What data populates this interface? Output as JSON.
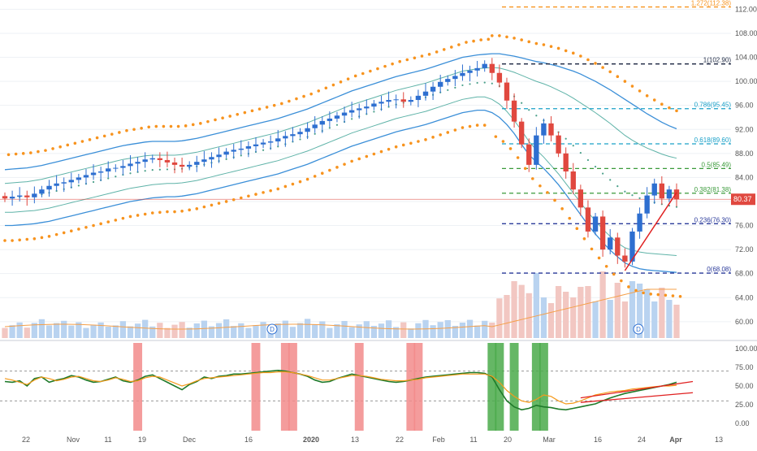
{
  "colors": {
    "background": "#ffffff",
    "grid": "#eef1f5",
    "axis_text": "#555555",
    "bull": "#2e6fd0",
    "bear": "#e0483f",
    "psar": "#f7931e",
    "envelope_outer": "#3b8fd8",
    "envelope_inner": "#5fb3a8",
    "fib": "#9a8a2a",
    "volume_up": "#b9d3f0",
    "volume_down": "#f2c7c2",
    "volume_ma": "#f5a04a",
    "osc_green": "#1f7a2a",
    "osc_orange": "#f59a1b",
    "osc_highlight_red": "#f28b8b",
    "osc_highlight_green": "#4aaa4a",
    "trendline": "#e02020",
    "price_tag_bg": "#e0483f",
    "price_tag_text": "#ffffff",
    "earnings_marker": "#2e6fd0"
  },
  "chart_data": [
    {
      "type": "candlestick",
      "panel": "price",
      "y_axis_position": "right",
      "ylim": [
        57,
        113
      ],
      "y_ticks": [
        "60.00",
        "64.00",
        "68.00",
        "72.00",
        "76.00",
        "80.00",
        "84.00",
        "88.00",
        "92.00",
        "96.00",
        "100.00",
        "104.00",
        "108.00",
        "112.00"
      ],
      "x_ticks": [
        "22",
        "Nov",
        "11",
        "19",
        "Dec",
        "16",
        "2020",
        "13",
        "22",
        "Feb",
        "11",
        "20",
        "Mar",
        "16",
        "24",
        "Apr",
        "13"
      ],
      "last_price_label": "80.37",
      "last_price": 80.37,
      "fib_levels": [
        {
          "label": "1.272(112.38)",
          "value": 112.38,
          "color": "#f7931e"
        },
        {
          "label": "1(102.90)",
          "value": 102.9,
          "color": "#1a2540"
        },
        {
          "label": "0.786(95.45)",
          "value": 95.45,
          "color": "#1aa0c8"
        },
        {
          "label": "0.618(89.60)",
          "value": 89.6,
          "color": "#1aa0c8"
        },
        {
          "label": "0.5(85.49)",
          "value": 85.49,
          "color": "#3a9a3a"
        },
        {
          "label": "0.382(81.38)",
          "value": 81.38,
          "color": "#3a9a3a"
        },
        {
          "label": "0.236(76.30)",
          "value": 76.3,
          "color": "#2a3a9a"
        },
        {
          "label": "0(68.08)",
          "value": 68.08,
          "color": "#2a3a9a"
        }
      ],
      "close_series": [
        80.5,
        80.8,
        81.0,
        80.7,
        81.3,
        82.0,
        82.6,
        83.0,
        83.2,
        83.6,
        84.0,
        84.4,
        84.8,
        85.0,
        85.5,
        85.6,
        85.9,
        86.3,
        86.6,
        87.0,
        87.2,
        86.9,
        86.5,
        86.1,
        85.8,
        86.1,
        86.6,
        87.0,
        87.4,
        87.8,
        88.3,
        88.6,
        88.8,
        89.2,
        89.5,
        89.8,
        90.0,
        90.5,
        90.9,
        91.2,
        91.6,
        92.2,
        92.8,
        93.4,
        93.8,
        94.3,
        94.8,
        95.2,
        95.5,
        95.8,
        96.3,
        96.6,
        96.9,
        97.0,
        96.6,
        96.9,
        97.6,
        98.3,
        99.1,
        99.9,
        100.4,
        100.9,
        101.4,
        101.8,
        102.2,
        102.9,
        101.4,
        99.8,
        96.8,
        93.3,
        89.5,
        86.1,
        91.0,
        93.0,
        91.0,
        88.0,
        85.0,
        82.0,
        79.0,
        75.0,
        77.5,
        72.0,
        74.0,
        71.0,
        70.0,
        75.0,
        78.0,
        81.0,
        83.0,
        80.5,
        82.0,
        80.37
      ],
      "open_series": [
        80.9,
        80.5,
        80.8,
        81.0,
        80.7,
        81.3,
        82.0,
        82.6,
        83.0,
        83.2,
        83.6,
        84.0,
        84.4,
        84.8,
        85.0,
        85.5,
        85.6,
        85.9,
        86.3,
        86.6,
        87.0,
        87.2,
        86.9,
        86.5,
        86.1,
        85.8,
        86.1,
        86.6,
        87.0,
        87.4,
        87.8,
        88.3,
        88.6,
        88.8,
        89.2,
        89.5,
        89.8,
        90.0,
        90.5,
        90.9,
        91.2,
        91.6,
        92.2,
        92.8,
        93.4,
        93.8,
        94.3,
        94.8,
        95.2,
        95.5,
        95.8,
        96.3,
        96.6,
        96.9,
        97.0,
        96.6,
        96.9,
        97.6,
        98.3,
        99.1,
        99.9,
        100.4,
        100.9,
        101.4,
        101.8,
        102.2,
        102.9,
        101.4,
        99.8,
        96.8,
        93.3,
        89.5,
        86.1,
        91.0,
        93.0,
        91.0,
        88.0,
        85.0,
        82.0,
        79.0,
        75.0,
        77.5,
        72.0,
        74.0,
        71.0,
        70.0,
        75.0,
        78.0,
        81.0,
        83.0,
        80.5,
        82.0
      ],
      "upper_envelope": [
        85.3,
        85.4,
        85.5,
        85.6,
        85.8,
        86.0,
        86.3,
        86.6,
        86.9,
        87.2,
        87.5,
        87.8,
        88.1,
        88.4,
        88.7,
        89.0,
        89.3,
        89.5,
        89.7,
        89.9,
        90.0,
        90.0,
        90.0,
        90.0,
        90.1,
        90.3,
        90.5,
        90.8,
        91.1,
        91.4,
        91.7,
        92.0,
        92.3,
        92.6,
        92.9,
        93.2,
        93.5,
        93.8,
        94.2,
        94.6,
        95.0,
        95.4,
        95.9,
        96.4,
        96.9,
        97.4,
        97.9,
        98.4,
        98.8,
        99.2,
        99.6,
        100.0,
        100.4,
        100.8,
        101.1,
        101.4,
        101.7,
        102.0,
        102.4,
        102.8,
        103.2,
        103.6,
        104.0,
        104.2,
        104.4,
        104.5,
        104.6,
        104.6,
        104.4,
        104.2,
        103.9,
        103.6,
        103.3,
        103.1,
        102.8,
        102.5,
        102.1,
        101.7,
        101.2,
        100.6,
        100.0,
        99.3,
        98.6,
        97.8,
        97.0,
        96.2,
        95.4,
        94.6,
        93.9,
        93.2,
        92.6,
        92.1
      ],
      "lower_envelope": [
        76.0,
        76.0,
        76.1,
        76.2,
        76.3,
        76.5,
        76.7,
        77.0,
        77.3,
        77.6,
        77.9,
        78.2,
        78.5,
        78.8,
        79.1,
        79.4,
        79.7,
        80.0,
        80.2,
        80.4,
        80.6,
        80.7,
        80.8,
        80.8,
        80.9,
        81.1,
        81.3,
        81.6,
        81.9,
        82.2,
        82.5,
        82.8,
        83.1,
        83.4,
        83.7,
        84.0,
        84.3,
        84.6,
        85.0,
        85.4,
        85.8,
        86.2,
        86.7,
        87.2,
        87.7,
        88.2,
        88.7,
        89.2,
        89.6,
        90.0,
        90.4,
        90.8,
        91.2,
        91.6,
        91.9,
        92.2,
        92.5,
        92.8,
        93.2,
        93.6,
        94.0,
        94.4,
        94.8,
        95.0,
        95.2,
        95.2,
        94.8,
        94.0,
        92.8,
        91.3,
        89.5,
        87.8,
        86.6,
        85.5,
        84.2,
        82.8,
        81.2,
        79.5,
        77.8,
        76.1,
        74.6,
        73.2,
        71.9,
        70.8,
        69.8,
        69.2,
        68.8,
        68.6,
        68.5,
        68.4,
        68.3,
        68.2
      ],
      "upper_inner": [
        83.0,
        83.1,
        83.2,
        83.3,
        83.5,
        83.7,
        84.0,
        84.3,
        84.6,
        84.9,
        85.2,
        85.5,
        85.8,
        86.1,
        86.4,
        86.7,
        87.0,
        87.2,
        87.4,
        87.6,
        87.7,
        87.7,
        87.7,
        87.7,
        87.8,
        88.0,
        88.2,
        88.5,
        88.8,
        89.1,
        89.4,
        89.7,
        90.0,
        90.3,
        90.6,
        90.9,
        91.2,
        91.5,
        91.9,
        92.3,
        92.7,
        93.1,
        93.6,
        94.1,
        94.6,
        95.1,
        95.6,
        96.1,
        96.5,
        96.9,
        97.3,
        97.7,
        98.1,
        98.5,
        98.8,
        99.1,
        99.4,
        99.7,
        100.1,
        100.5,
        100.9,
        101.3,
        101.7,
        101.9,
        102.1,
        102.2,
        102.3,
        102.2,
        101.9,
        101.5,
        101.0,
        100.5,
        100.0,
        99.6,
        99.1,
        98.5,
        97.9,
        97.2,
        96.4,
        95.6,
        94.8,
        93.9,
        93.0,
        92.0,
        91.0,
        90.2,
        89.5,
        88.9,
        88.4,
        87.9,
        87.5,
        87.2
      ],
      "lower_inner": [
        78.2,
        78.2,
        78.3,
        78.4,
        78.5,
        78.7,
        78.9,
        79.2,
        79.5,
        79.8,
        80.1,
        80.4,
        80.7,
        81.0,
        81.3,
        81.6,
        81.9,
        82.2,
        82.4,
        82.6,
        82.8,
        82.9,
        83.0,
        83.0,
        83.1,
        83.3,
        83.5,
        83.8,
        84.1,
        84.4,
        84.7,
        85.0,
        85.3,
        85.6,
        85.9,
        86.2,
        86.5,
        86.8,
        87.2,
        87.6,
        88.0,
        88.4,
        88.9,
        89.4,
        89.9,
        90.4,
        90.9,
        91.4,
        91.8,
        92.2,
        92.6,
        93.0,
        93.4,
        93.8,
        94.1,
        94.4,
        94.7,
        95.0,
        95.4,
        95.8,
        96.2,
        96.6,
        97.0,
        97.2,
        97.4,
        97.4,
        97.0,
        96.2,
        95.0,
        93.5,
        91.8,
        90.0,
        88.6,
        87.4,
        86.0,
        84.6,
        83.0,
        81.4,
        79.8,
        78.2,
        76.8,
        75.4,
        74.2,
        73.1,
        72.3,
        71.9,
        71.6,
        71.4,
        71.3,
        71.2,
        71.1,
        71.0
      ],
      "psar_above_upper": [],
      "volume_label_marker": "D"
    },
    {
      "type": "line",
      "panel": "oscillator",
      "y_axis_position": "right",
      "ylim": [
        -10,
        110
      ],
      "y_ticks": [
        "0.00",
        "25.00",
        "50.00",
        "75.00",
        "100.00"
      ],
      "reference_lines": [
        30,
        70
      ],
      "series": [
        {
          "color": "#1f7a2a",
          "values": [
            56,
            55,
            57,
            50,
            60,
            62,
            55,
            58,
            60,
            64,
            62,
            58,
            55,
            56,
            59,
            62,
            57,
            55,
            58,
            63,
            65,
            60,
            55,
            50,
            45,
            52,
            56,
            62,
            60,
            63,
            64,
            66,
            66,
            67,
            68,
            69,
            70,
            71,
            70,
            68,
            66,
            63,
            58,
            55,
            56,
            60,
            63,
            66,
            64,
            62,
            60,
            58,
            56,
            55,
            56,
            58,
            60,
            62,
            63,
            64,
            65,
            66,
            67,
            68,
            68,
            67,
            62,
            45,
            30,
            22,
            18,
            20,
            24,
            22,
            21,
            19,
            18,
            20,
            22,
            24,
            26,
            30,
            34,
            37,
            40,
            42,
            44,
            46,
            48,
            50,
            52,
            55
          ]
        },
        {
          "color": "#f59a1b",
          "values": [
            60,
            58,
            55,
            52,
            58,
            62,
            60,
            57,
            59,
            62,
            63,
            60,
            57,
            56,
            58,
            61,
            59,
            56,
            57,
            61,
            63,
            62,
            58,
            54,
            50,
            53,
            57,
            60,
            61,
            62,
            63,
            64,
            65,
            66,
            67,
            68,
            68,
            69,
            69,
            68,
            66,
            64,
            61,
            58,
            58,
            60,
            62,
            64,
            64,
            63,
            61,
            59,
            58,
            57,
            57,
            58,
            59,
            61,
            62,
            63,
            64,
            65,
            66,
            66,
            66,
            66,
            63,
            55,
            44,
            36,
            30,
            28,
            32,
            38,
            36,
            30,
            26,
            27,
            30,
            34,
            38,
            40,
            42,
            43,
            44,
            46,
            47,
            48,
            49,
            50,
            50,
            51
          ]
        }
      ],
      "trendlines": [
        {
          "x1": 78,
          "y1": 34,
          "x2": 91,
          "y2": 56
        },
        {
          "x1": 78,
          "y1": 28,
          "x2": 91,
          "y2": 41
        }
      ],
      "highlight_bars": [
        {
          "x": 18,
          "color": "red"
        },
        {
          "x": 34,
          "color": "red"
        },
        {
          "x": 38,
          "color": "red"
        },
        {
          "x": 39,
          "color": "red"
        },
        {
          "x": 48,
          "color": "red"
        },
        {
          "x": 55,
          "color": "red"
        },
        {
          "x": 56,
          "color": "red"
        },
        {
          "x": 66,
          "color": "green"
        },
        {
          "x": 67,
          "color": "green"
        },
        {
          "x": 69,
          "color": "green"
        },
        {
          "x": 72,
          "color": "green"
        },
        {
          "x": 73,
          "color": "green"
        }
      ]
    }
  ]
}
